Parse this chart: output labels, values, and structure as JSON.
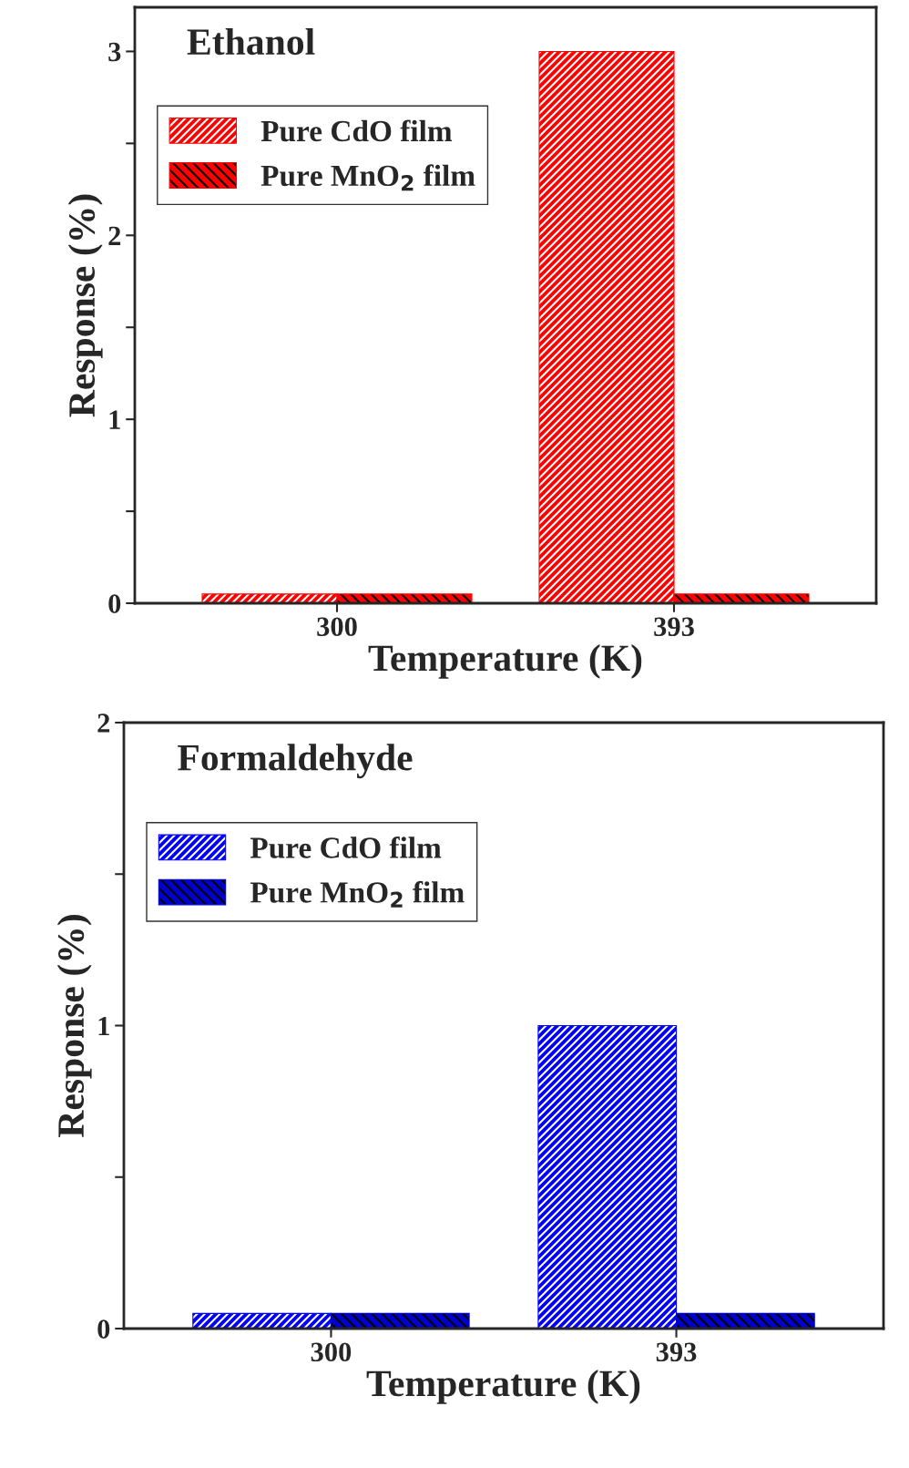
{
  "chart_data": [
    {
      "type": "bar",
      "title": "Ethanol",
      "xlabel": "Temperature (K)",
      "ylabel": "Response (%)",
      "categories": [
        "300",
        "393"
      ],
      "series": [
        {
          "name": "Pure CdO film",
          "color": "#ff0000",
          "values": [
            0.05,
            3
          ]
        },
        {
          "name": "Pure MnO$_{2}$ film",
          "color": "#ff0000",
          "values": [
            0.05,
            0.05
          ]
        }
      ],
      "ylim": [
        0,
        3.24
      ],
      "yticks": [
        0,
        {
          "value": 0.5,
          "label": null
        },
        1,
        {
          "value": 1.5,
          "label": null
        },
        2,
        {
          "value": 2.5,
          "label": null
        },
        3
      ],
      "legend": "top left",
      "grid": false
    },
    {
      "type": "bar",
      "title": "Formaldehyde",
      "xlabel": "Temperature (K)",
      "ylabel": "Response (%)",
      "categories": [
        "300",
        "393"
      ],
      "series": [
        {
          "name": "Pure CdO film",
          "color": "#0000ff",
          "values": [
            0.05,
            1
          ]
        },
        {
          "name": "Pure MnO$_{2}$ film",
          "color": "#0000cc",
          "values": [
            0.05,
            0.05
          ]
        }
      ],
      "ylim": [
        0,
        2
      ],
      "yticks": [
        0,
        {
          "value": 0.5,
          "label": null
        },
        1,
        {
          "value": 1.5,
          "label": null
        },
        2
      ],
      "legend": "top left",
      "grid": false
    }
  ]
}
